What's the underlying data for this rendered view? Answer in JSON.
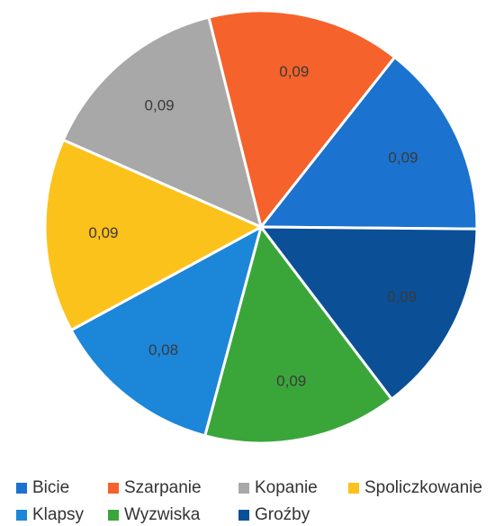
{
  "chart_data": {
    "type": "pie",
    "categories": [
      "Bicie",
      "Szarpanie",
      "Kopanie",
      "Spoliczkowanie",
      "Klapsy",
      "Wyzwiska",
      "Groźby"
    ],
    "values": [
      0.09,
      0.09,
      0.09,
      0.09,
      0.08,
      0.09,
      0.09
    ],
    "value_labels": [
      "0,09",
      "0,09",
      "0,09",
      "0,09",
      "0,08",
      "0,09",
      "0,09"
    ],
    "colors": [
      "#1b72cf",
      "#f5622b",
      "#a8a8a8",
      "#fcc21c",
      "#1c86d9",
      "#3aa63a",
      "#0b4f97"
    ],
    "legend": "bottom"
  }
}
